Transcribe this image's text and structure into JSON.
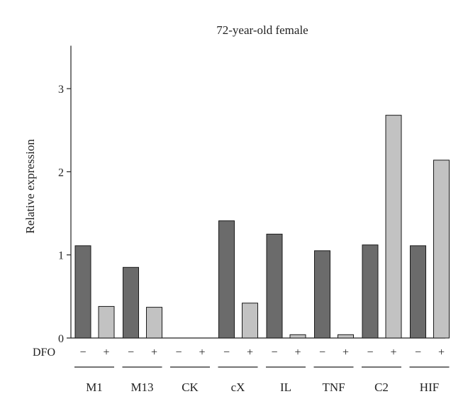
{
  "chart_data": {
    "type": "bar",
    "title": "72-year-old female",
    "ylabel": "Relative expression",
    "ylim": [
      0,
      3.5
    ],
    "yticks": [
      0,
      1,
      2,
      3
    ],
    "treatment_label": "DFO",
    "condition_labels": [
      "−",
      "+"
    ],
    "groups": [
      "M1",
      "M13",
      "CK",
      "cX",
      "IL",
      "TNF",
      "C2",
      "HIF"
    ],
    "series": [
      {
        "condition": "−",
        "color": "#6b6b6b",
        "values": [
          1.11,
          0.85,
          0.0,
          1.41,
          1.25,
          1.05,
          1.12,
          1.11
        ]
      },
      {
        "condition": "+",
        "color": "#c2c2c2",
        "values": [
          0.38,
          0.37,
          0.0,
          0.42,
          0.04,
          0.04,
          2.68,
          2.14
        ]
      }
    ],
    "grid": false
  }
}
